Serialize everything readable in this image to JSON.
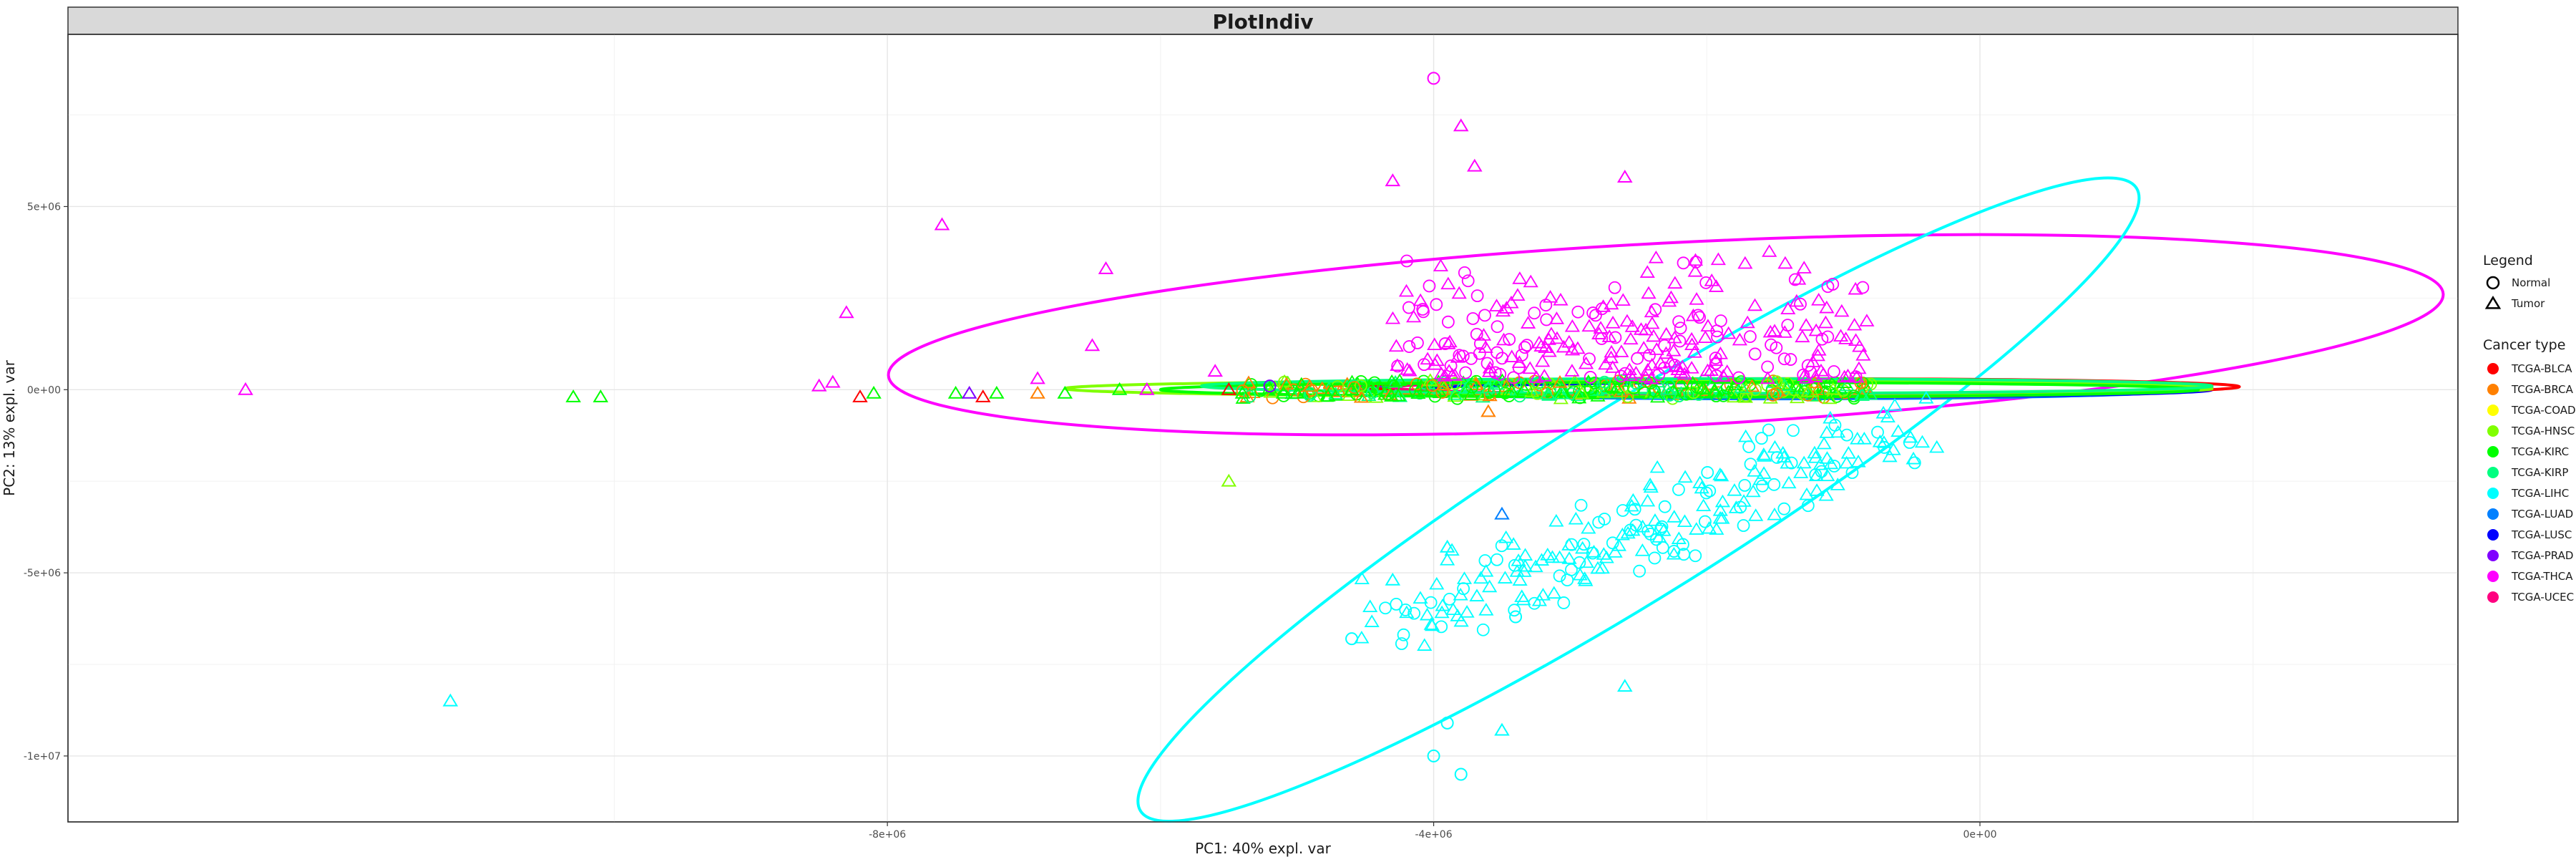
{
  "chart_data": {
    "type": "scatter",
    "title": "PlotIndiv",
    "xlabel": "PC1: 40% expl. var",
    "ylabel": "PC2: 13% expl. var",
    "xlim": [
      -14000000,
      3500000
    ],
    "ylim": [
      -11800000,
      9700000
    ],
    "x_ticks": [
      {
        "value": -8000000,
        "label": "-8e+06"
      },
      {
        "value": -4000000,
        "label": "-4e+06"
      },
      {
        "value": 0,
        "label": "0e+00"
      }
    ],
    "y_ticks": [
      {
        "value": 5000000,
        "label": "5e+06"
      },
      {
        "value": 0,
        "label": "0e+00"
      },
      {
        "value": -5000000,
        "label": "-5e+06"
      },
      {
        "value": -10000000,
        "label": "-1e+07"
      }
    ],
    "grid": true,
    "legend_position": "right",
    "legend": {
      "shape_title": "Legend",
      "shapes": [
        {
          "label": "Normal",
          "shape": "circle"
        },
        {
          "label": "Tumor",
          "shape": "triangle"
        }
      ],
      "color_title": "Cancer type",
      "colors": [
        {
          "label": "TCGA-BLCA",
          "color": "#FF0000"
        },
        {
          "label": "TCGA-BRCA",
          "color": "#FF8000"
        },
        {
          "label": "TCGA-COAD",
          "color": "#FFFF00"
        },
        {
          "label": "TCGA-HNSC",
          "color": "#80FF00"
        },
        {
          "label": "TCGA-KIRC",
          "color": "#00FF00"
        },
        {
          "label": "TCGA-KIRP",
          "color": "#00FF80"
        },
        {
          "label": "TCGA-LIHC",
          "color": "#00FFFF"
        },
        {
          "label": "TCGA-LUAD",
          "color": "#0080FF"
        },
        {
          "label": "TCGA-LUSC",
          "color": "#0000FF"
        },
        {
          "label": "TCGA-PRAD",
          "color": "#8000FF"
        },
        {
          "label": "TCGA-THCA",
          "color": "#FF00FF"
        },
        {
          "label": "TCGA-UCEC",
          "color": "#FF0080"
        }
      ]
    },
    "ellipses": [
      {
        "group": "TCGA-THCA",
        "color": "#FF00FF",
        "cx": -2300000,
        "cy": 1500000,
        "rx": 5700000,
        "ry": 2500000,
        "angle": 3
      },
      {
        "group": "TCGA-LIHC",
        "color": "#00FFFF",
        "cx": -2500000,
        "cy": -3000000,
        "rx": 4300000,
        "ry": 2600000,
        "angle": 32
      },
      {
        "group": "TCGA-LUAD",
        "color": "#0080FF",
        "cx": -1500000,
        "cy": 0,
        "rx": 3000000,
        "ry": 250000,
        "angle": 0
      },
      {
        "group": "TCGA-LUSC",
        "color": "#0000FF",
        "cx": -1200000,
        "cy": 0,
        "rx": 2900000,
        "ry": 200000,
        "angle": 0
      },
      {
        "group": "TCGA-PRAD",
        "color": "#8000FF",
        "cx": -1500000,
        "cy": 50000,
        "rx": 3100000,
        "ry": 180000,
        "angle": 0
      },
      {
        "group": "TCGA-BLCA",
        "color": "#FF0000",
        "cx": -1300000,
        "cy": 80000,
        "rx": 3200000,
        "ry": 220000,
        "angle": 0
      },
      {
        "group": "TCGA-UCEC",
        "color": "#FF0080",
        "cx": -1300000,
        "cy": 60000,
        "rx": 3000000,
        "ry": 200000,
        "angle": 0
      },
      {
        "group": "TCGA-BRCA",
        "color": "#FF8000",
        "cx": -1600000,
        "cy": 50000,
        "rx": 3200000,
        "ry": 250000,
        "angle": 0
      },
      {
        "group": "TCGA-HNSC",
        "color": "#80FF00",
        "cx": -2500000,
        "cy": 30000,
        "rx": 4200000,
        "ry": 220000,
        "angle": 0
      },
      {
        "group": "TCGA-KIRC",
        "color": "#00FF00",
        "cx": -2200000,
        "cy": 0,
        "rx": 3800000,
        "ry": 200000,
        "angle": 0
      },
      {
        "group": "TCGA-KIRP",
        "color": "#00FF80",
        "cx": -2000000,
        "cy": 100000,
        "rx": 3700000,
        "ry": 200000,
        "angle": 0
      }
    ],
    "points": [
      {
        "g": "TCGA-THCA",
        "s": "triangle",
        "x": -12700000,
        "y": 0
      },
      {
        "g": "TCGA-THCA",
        "s": "triangle",
        "x": -7600000,
        "y": 4500000
      },
      {
        "g": "TCGA-THCA",
        "s": "triangle",
        "x": -8300000,
        "y": 2100000
      },
      {
        "g": "TCGA-THCA",
        "s": "triangle",
        "x": -6400000,
        "y": 3300000
      },
      {
        "g": "TCGA-THCA",
        "s": "triangle",
        "x": -6500000,
        "y": 1200000
      },
      {
        "g": "TCGA-THCA",
        "s": "circle",
        "x": -4000000,
        "y": 8500000
      },
      {
        "g": "TCGA-THCA",
        "s": "triangle",
        "x": -3800000,
        "y": 7200000
      },
      {
        "g": "TCGA-THCA",
        "s": "triangle",
        "x": -3700000,
        "y": 6100000
      },
      {
        "g": "TCGA-THCA",
        "s": "triangle",
        "x": -4300000,
        "y": 5700000
      },
      {
        "g": "TCGA-THCA",
        "s": "triangle",
        "x": -2600000,
        "y": 5800000
      },
      {
        "g": "TCGA-THCA",
        "s": "triangle",
        "x": -8500000,
        "y": 100000
      },
      {
        "g": "TCGA-THCA",
        "s": "triangle",
        "x": -8400000,
        "y": 200000
      },
      {
        "g": "TCGA-THCA",
        "s": "triangle",
        "x": -6900000,
        "y": 300000
      },
      {
        "g": "TCGA-THCA",
        "s": "triangle",
        "x": -6100000,
        "y": 0
      },
      {
        "g": "TCGA-THCA",
        "s": "triangle",
        "x": -5600000,
        "y": 500000
      },
      {
        "g": "TCGA-BLCA",
        "s": "triangle",
        "x": -8200000,
        "y": -200000
      },
      {
        "g": "TCGA-BLCA",
        "s": "triangle",
        "x": -7300000,
        "y": -200000
      },
      {
        "g": "TCGA-BLCA",
        "s": "triangle",
        "x": -5500000,
        "y": 0
      },
      {
        "g": "TCGA-KIRC",
        "s": "triangle",
        "x": -10300000,
        "y": -200000
      },
      {
        "g": "TCGA-KIRC",
        "s": "triangle",
        "x": -10100000,
        "y": -200000
      },
      {
        "g": "TCGA-KIRC",
        "s": "triangle",
        "x": -8100000,
        "y": -100000
      },
      {
        "g": "TCGA-KIRC",
        "s": "triangle",
        "x": -7500000,
        "y": -100000
      },
      {
        "g": "TCGA-KIRC",
        "s": "triangle",
        "x": -7200000,
        "y": -100000
      },
      {
        "g": "TCGA-KIRC",
        "s": "triangle",
        "x": -6700000,
        "y": -100000
      },
      {
        "g": "TCGA-KIRC",
        "s": "triangle",
        "x": -6300000,
        "y": 0
      },
      {
        "g": "TCGA-KIRC",
        "s": "triangle",
        "x": -5400000,
        "y": -100000
      },
      {
        "g": "TCGA-KIRC",
        "s": "triangle",
        "x": -5100000,
        "y": -100000
      },
      {
        "g": "TCGA-KIRC",
        "s": "triangle",
        "x": -5000000,
        "y": -100000
      },
      {
        "g": "TCGA-KIRC",
        "s": "triangle",
        "x": -4600000,
        "y": 0
      },
      {
        "g": "TCGA-HNSC",
        "s": "triangle",
        "x": -5500000,
        "y": -2500000
      },
      {
        "g": "TCGA-BRCA",
        "s": "triangle",
        "x": -6900000,
        "y": -100000
      },
      {
        "g": "TCGA-BRCA",
        "s": "triangle",
        "x": -3600000,
        "y": -600000
      },
      {
        "g": "TCGA-PRAD",
        "s": "triangle",
        "x": -7400000,
        "y": -100000
      },
      {
        "g": "TCGA-PRAD",
        "s": "circle",
        "x": -5200000,
        "y": 100000
      },
      {
        "g": "TCGA-LUAD",
        "s": "triangle",
        "x": -3500000,
        "y": -3400000
      },
      {
        "g": "TCGA-LIHC",
        "s": "triangle",
        "x": -11200000,
        "y": -8500000
      },
      {
        "g": "TCGA-LIHC",
        "s": "circle",
        "x": -4000000,
        "y": -10000000
      },
      {
        "g": "TCGA-LIHC",
        "s": "circle",
        "x": -3900000,
        "y": -9100000
      },
      {
        "g": "TCGA-LIHC",
        "s": "circle",
        "x": -3800000,
        "y": -10500000
      },
      {
        "g": "TCGA-LIHC",
        "s": "triangle",
        "x": -3500000,
        "y": -9300000
      },
      {
        "g": "TCGA-LIHC",
        "s": "circle",
        "x": -4600000,
        "y": -6800000
      },
      {
        "g": "TCGA-LIHC",
        "s": "triangle",
        "x": -4300000,
        "y": -5200000
      },
      {
        "g": "TCGA-LIHC",
        "s": "triangle",
        "x": -2600000,
        "y": -8100000
      },
      {
        "g": "TCGA-LIHC",
        "s": "triangle",
        "x": -3900000,
        "y": -4300000
      },
      {
        "g": "TCGA-LIHC",
        "s": "circle",
        "x": -3400000,
        "y": -6200000
      }
    ]
  }
}
